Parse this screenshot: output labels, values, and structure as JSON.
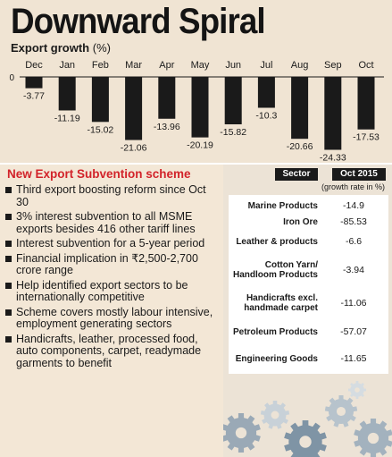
{
  "title": "Downward Spiral",
  "subtitle": {
    "label": "Export growth",
    "unit": "(%)"
  },
  "chart_data": {
    "type": "bar",
    "title": "Export growth (%)",
    "categories": [
      "Dec",
      "Jan",
      "Feb",
      "Mar",
      "Apr",
      "May",
      "Jun",
      "Jul",
      "Aug",
      "Sep",
      "Oct"
    ],
    "values": [
      -3.77,
      -11.19,
      -15.02,
      -21.06,
      -13.96,
      -20.19,
      -15.82,
      -10.3,
      -20.66,
      -24.33,
      -17.53
    ],
    "value_labels": [
      "-3.77",
      "-11.19",
      "-15.02",
      "-21.06",
      "-13.96",
      "-20.19",
      "-15.82",
      "-10.3",
      "-20.66",
      "-24.33",
      "-17.53"
    ],
    "zero_tick": "0",
    "bar_color": "#1a1a1a",
    "grid": false
  },
  "scheme": {
    "title": "New Export Subvention scheme",
    "title_color": "#d2232a",
    "items": [
      "Third export boosting reform since Oct 30",
      "3% interest subvention to all MSME exports besides 416 other tariff lines",
      "Interest subvention for a 5-year period",
      "Financial implication in ₹2,500-2,700 crore range",
      "Help identified export sectors to be internationally competitive",
      "Scheme covers mostly labour intensive, employment generating sectors",
      "Handicrafts, leather, processed food, auto components, carpet, readymade garments to benefit"
    ]
  },
  "sector_table": {
    "header_sector": "Sector",
    "header_period": "Oct 2015",
    "unit_note": "(growth rate in %)",
    "rows": [
      {
        "sector": "Marine Products",
        "value": "-14.9"
      },
      {
        "sector": "Iron Ore",
        "value": "-85.53"
      },
      {
        "sector": "Leather & products",
        "value": "-6.6"
      },
      {
        "sector": "Cotton Yarn/ Handloom Products",
        "value": "-3.94"
      },
      {
        "sector": "Handicrafts excl. handmade carpet",
        "value": "-11.06"
      },
      {
        "sector": "Petroleum Products",
        "value": "-57.07"
      },
      {
        "sector": "Engineering Goods",
        "value": "-11.65"
      }
    ]
  }
}
